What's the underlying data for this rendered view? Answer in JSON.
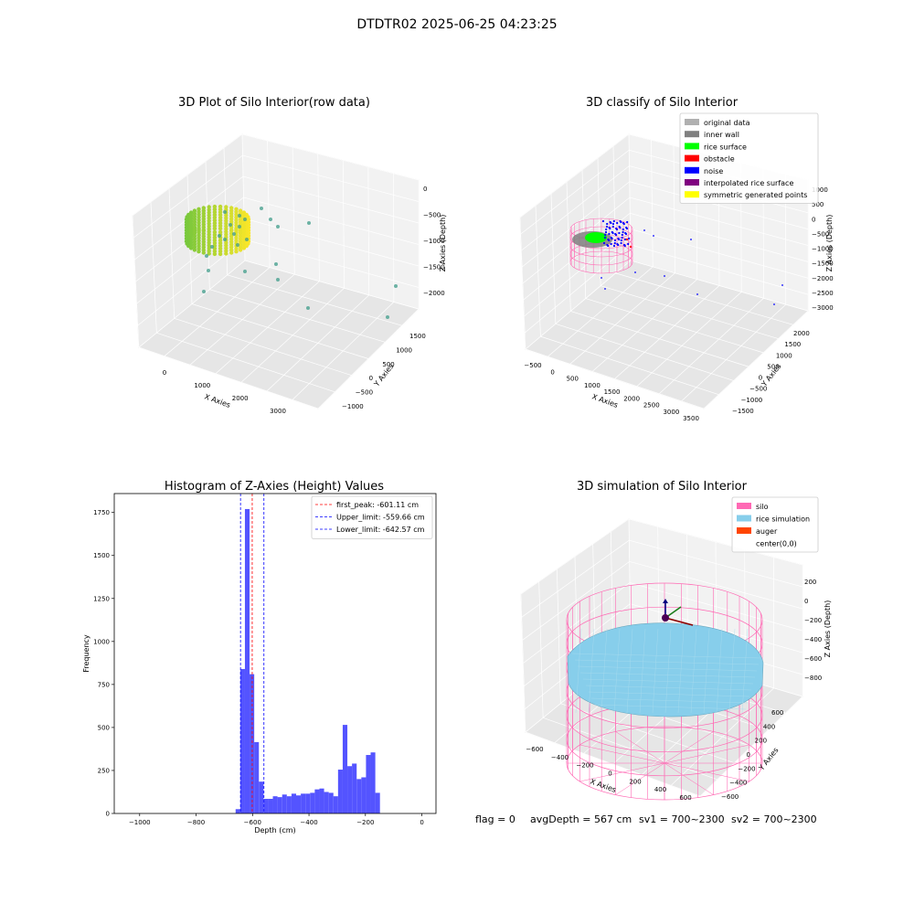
{
  "figure": {
    "suptitle": "DTDTR02 2025-06-25 04:23:25",
    "status": {
      "flag": "flag = 0",
      "avg_depth": "avgDepth = 567 cm",
      "sv1": "sv1 = 700~2300",
      "sv2": "sv2 = 700~2300"
    }
  },
  "colors": {
    "original_data": "#b0b0b0",
    "inner_wall": "#808080",
    "rice_surface": "#00ff00",
    "obstacle": "#ff0000",
    "noise": "#0000ff",
    "interpolated_rice_surface": "#800080",
    "symmetric_generated_points": "#ffff00",
    "silo": "#ff69b4",
    "rice_simulation": "#87ceeb",
    "auger": "#ff4500",
    "histogram_bar": "#4b4bff",
    "first_peak_line": "#ff0000",
    "limit_line": "#0000ff"
  },
  "chart_data": [
    {
      "type": "scatter",
      "title": "3D Plot of Silo Interior(row data)",
      "xlabel": "X Axies",
      "ylabel": "Y Axies",
      "zlabel": "Z Axies (Depth)",
      "x_ticks": [
        "0",
        "1000",
        "2000",
        "3000"
      ],
      "y_ticks": [
        "−1000",
        "−500",
        "0",
        "500",
        "1000",
        "1500"
      ],
      "z_ticks": [
        "0",
        "−500",
        "−1000",
        "−1500",
        "−2000"
      ],
      "xlim": [
        -500,
        3700
      ],
      "ylim": [
        -1200,
        1900
      ],
      "zlim": [
        -2300,
        100
      ],
      "colormap": "viridis"
    },
    {
      "type": "scatter",
      "title": "3D classify of Silo Interior",
      "xlabel": "X Axies",
      "ylabel": "Y Axies",
      "zlabel": "Z Axies (Depth)",
      "x_ticks": [
        "−500",
        "0",
        "500",
        "1000",
        "1500",
        "2000",
        "2500",
        "3000",
        "3500"
      ],
      "y_ticks": [
        "−1500",
        "−1000",
        "−500",
        "0",
        "500",
        "1000",
        "1500",
        "2000"
      ],
      "z_ticks": [
        "1000",
        "500",
        "0",
        "−500",
        "−1000",
        "−1500",
        "−2000",
        "−2500",
        "−3000"
      ],
      "legend": [
        "original data",
        "inner wall",
        "rice surface",
        "obstacle",
        "noise",
        "interpolated rice surface",
        "symmetric generated points"
      ],
      "legend_keys": [
        "original_data",
        "inner_wall",
        "rice_surface",
        "obstacle",
        "noise",
        "interpolated_rice_surface",
        "symmetric_generated_points"
      ],
      "legend_position": "top-right"
    },
    {
      "type": "bar",
      "title": "Histogram of Z-Axies (Height) Values",
      "xlabel": "Depth (cm)",
      "ylabel": "Frequency",
      "xlim": [
        -1090,
        50
      ],
      "ylim": [
        0,
        1860
      ],
      "x_ticks": [
        -1000,
        -800,
        -600,
        -400,
        -200,
        0
      ],
      "x_tick_labels": [
        "−1000",
        "−800",
        "−600",
        "−400",
        "−200",
        "0"
      ],
      "y_ticks": [
        0,
        250,
        500,
        750,
        1000,
        1250,
        1500,
        1750
      ],
      "y_tick_labels": [
        "0",
        "250",
        "500",
        "750",
        "1000",
        "1250",
        "1500",
        "1750"
      ],
      "bin_start": -660,
      "bin_width": 16.5,
      "values": [
        25,
        840,
        1770,
        810,
        415,
        185,
        85,
        85,
        100,
        95,
        110,
        100,
        115,
        105,
        115,
        115,
        120,
        140,
        145,
        125,
        120,
        100,
        255,
        515,
        275,
        290,
        200,
        210,
        340,
        355,
        120
      ],
      "lines": [
        {
          "label": "first_peak: -601.11 cm",
          "x": -601.11,
          "key": "first_peak_line"
        },
        {
          "label": "Upper_limit: -559.66 cm",
          "x": -559.66,
          "key": "limit_line"
        },
        {
          "label": "Lower_limit: -642.57 cm",
          "x": -642.57,
          "key": "limit_line"
        }
      ],
      "legend_position": "top-right"
    },
    {
      "type": "scatter",
      "title": "3D simulation of Silo Interior",
      "xlabel": "X Axies",
      "ylabel": "Y Axies",
      "zlabel": "Z Axies (Depth)",
      "x_ticks": [
        "−600",
        "−400",
        "−200",
        "0",
        "200",
        "400",
        "600"
      ],
      "y_ticks": [
        "−600",
        "−400",
        "−200",
        "0",
        "200",
        "400",
        "600"
      ],
      "z_ticks": [
        "200",
        "0",
        "−200",
        "−400",
        "−600",
        "−800"
      ],
      "legend": [
        "silo",
        "rice simulation",
        "auger",
        "center(0,0)"
      ],
      "legend_keys": [
        "silo",
        "rice_simulation",
        "auger",
        ""
      ],
      "legend_position": "top-right"
    }
  ]
}
